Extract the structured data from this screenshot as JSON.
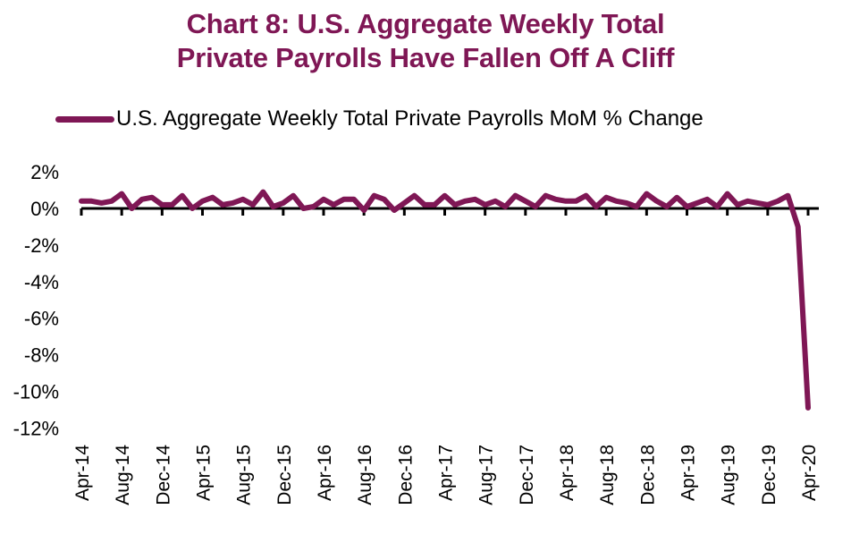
{
  "chart_data": {
    "type": "line",
    "title": "Chart 8: U.S. Aggregate Weekly Total Private Payrolls Have Fallen Off A Cliff",
    "title_lines": [
      "Chart 8: U.S. Aggregate Weekly Total",
      "Private Payrolls Have Fallen Off A Cliff"
    ],
    "xlabel": "",
    "ylabel": "",
    "ylim": [
      -12,
      2
    ],
    "yticks": [
      2,
      0,
      -2,
      -4,
      -6,
      -8,
      -10,
      -12
    ],
    "ytick_labels": [
      "2%",
      "0%",
      "-2%",
      "-4%",
      "-6%",
      "-8%",
      "-10%",
      "-12%"
    ],
    "xtick_labels": [
      "Apr-14",
      "Aug-14",
      "Dec-14",
      "Apr-15",
      "Aug-15",
      "Dec-15",
      "Apr-16",
      "Aug-16",
      "Dec-16",
      "Apr-17",
      "Aug-17",
      "Dec-17",
      "Apr-18",
      "Aug-18",
      "Dec-18",
      "Apr-19",
      "Aug-19",
      "Dec-19",
      "Apr-20"
    ],
    "xtick_every_months": 4,
    "grid": false,
    "legend_position": "top",
    "color": "#7f1755",
    "series": [
      {
        "name": "U.S. Aggregate Weekly Total Private Payrolls MoM % Change",
        "x_start": "Apr-14",
        "x_end": "Apr-20",
        "frequency": "monthly",
        "values": [
          0.4,
          0.4,
          0.3,
          0.4,
          0.8,
          0.0,
          0.5,
          0.6,
          0.2,
          0.2,
          0.7,
          0.0,
          0.4,
          0.6,
          0.2,
          0.3,
          0.5,
          0.2,
          0.9,
          0.1,
          0.3,
          0.7,
          0.0,
          0.1,
          0.5,
          0.2,
          0.5,
          0.5,
          -0.1,
          0.7,
          0.5,
          -0.1,
          0.3,
          0.7,
          0.2,
          0.2,
          0.7,
          0.2,
          0.4,
          0.5,
          0.2,
          0.4,
          0.1,
          0.7,
          0.4,
          0.1,
          0.7,
          0.5,
          0.4,
          0.4,
          0.7,
          0.1,
          0.6,
          0.4,
          0.3,
          0.1,
          0.8,
          0.4,
          0.1,
          0.6,
          0.1,
          0.3,
          0.5,
          0.1,
          0.8,
          0.2,
          0.4,
          0.3,
          0.2,
          0.4,
          0.7,
          -1.0,
          -10.9
        ]
      }
    ]
  }
}
